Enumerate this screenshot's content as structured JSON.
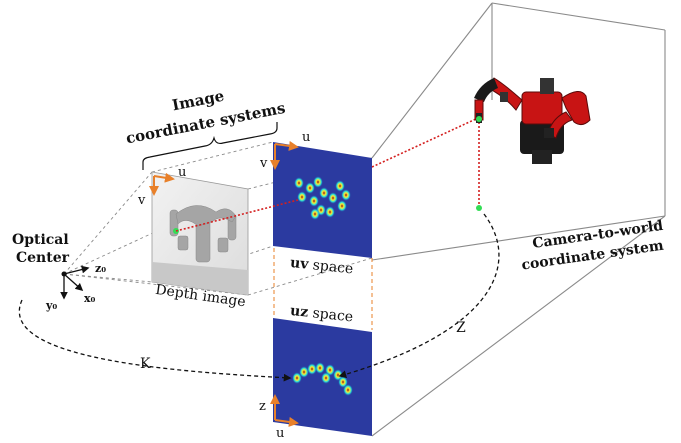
{
  "labels": {
    "image_coord_line1": "Image",
    "image_coord_line2": "coordinate systems",
    "optical_line1": "Optical",
    "optical_line2": "Center",
    "camera_world_line1": "Camera-to-world",
    "camera_world_line2": "coordinate system",
    "depth_image": "Depth image",
    "uv_space_bold": "uv",
    "uv_space_rest": " space",
    "uz_space_bold": "uz",
    "uz_space_rest": " space",
    "k_label": "K",
    "z_label": "Z",
    "u_depth": "u",
    "v_depth": "v",
    "u_uvpanel": "u",
    "v_uvpanel": "v",
    "z_uzpanel": "z",
    "u_uzpanel": "u",
    "axis_z0": "z₀",
    "axis_x0": "x₀",
    "axis_y0": "y₀"
  },
  "colors": {
    "heatmap_background": "#2b3aa0",
    "arrow_orange": "#e8802a",
    "ray_red": "#d42020",
    "robot_red": "#c81414",
    "point_green": "#33dd55",
    "frustum_gray": "#8a8a8a"
  },
  "icons": {
    "robot": "baxter-robot-icon"
  }
}
